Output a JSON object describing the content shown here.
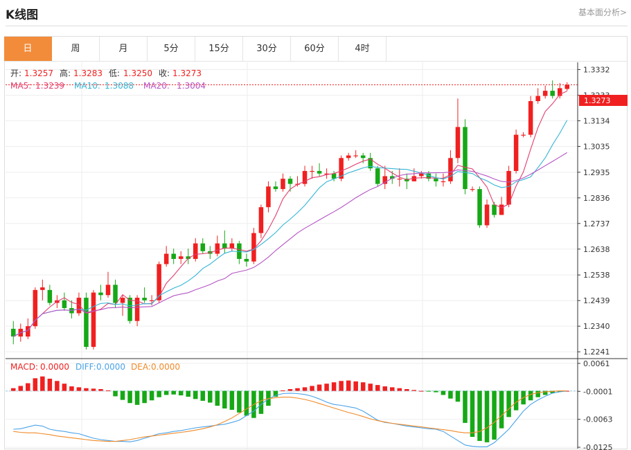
{
  "page": {
    "title": "K线图",
    "top_link": "基本面分析>"
  },
  "tabs": [
    {
      "label": "日",
      "active": true
    },
    {
      "label": "周",
      "active": false
    },
    {
      "label": "月",
      "active": false
    },
    {
      "label": "5分",
      "active": false
    },
    {
      "label": "15分",
      "active": false
    },
    {
      "label": "30分",
      "active": false
    },
    {
      "label": "60分",
      "active": false
    },
    {
      "label": "4时",
      "active": false
    }
  ],
  "info": {
    "open_label": "开:",
    "open": "1.3257",
    "high_label": "高:",
    "high": "1.3283",
    "low_label": "低:",
    "low": "1.3250",
    "close_label": "收:",
    "close": "1.3273",
    "ma5_label": "MA5:",
    "ma5": "1.3239",
    "ma10_label": "MA10:",
    "ma10": "1.3088",
    "ma20_label": "MA20:",
    "ma20": "1.3004"
  },
  "macd_info": {
    "macd_label": "MACD:",
    "macd": "0.0000",
    "diff_label": "DIFF:",
    "diff": "0.0000",
    "dea_label": "DEA:",
    "dea": "0.0000"
  },
  "colors": {
    "up": "#f02020",
    "down": "#16a816",
    "ma5": "#e23c6e",
    "ma10": "#34b5d6",
    "ma20": "#b453c4",
    "diff": "#4aa3e8",
    "dea": "#f08a28",
    "accent": "#f28c3a"
  },
  "chart_data": {
    "type": "candlestick",
    "price_ticks": [
      "1.3332",
      "1.3233",
      "1.3134",
      "1.3035",
      "1.2935",
      "1.2836",
      "1.2737",
      "1.2638",
      "1.2538",
      "1.2439",
      "1.2340",
      "1.2241"
    ],
    "price_range": [
      1.222,
      1.336
    ],
    "last_price": "1.3273",
    "candles": [
      [
        1.233,
        1.23,
        1.236,
        1.227
      ],
      [
        1.23,
        1.233,
        1.235,
        1.228
      ],
      [
        1.23,
        1.234,
        1.237,
        1.229
      ],
      [
        1.234,
        1.248,
        1.249,
        1.233
      ],
      [
        1.248,
        1.249,
        1.252,
        1.244
      ],
      [
        1.248,
        1.243,
        1.25,
        1.242
      ],
      [
        1.243,
        1.244,
        1.246,
        1.241
      ],
      [
        1.244,
        1.241,
        1.247,
        1.24
      ],
      [
        1.241,
        1.239,
        1.244,
        1.237
      ],
      [
        1.239,
        1.245,
        1.247,
        1.238
      ],
      [
        1.245,
        1.226,
        1.247,
        1.225
      ],
      [
        1.226,
        1.247,
        1.248,
        1.225
      ],
      [
        1.247,
        1.246,
        1.25,
        1.244
      ],
      [
        1.246,
        1.25,
        1.255,
        1.245
      ],
      [
        1.25,
        1.243,
        1.252,
        1.241
      ],
      [
        1.243,
        1.245,
        1.246,
        1.238
      ],
      [
        1.245,
        1.236,
        1.246,
        1.235
      ],
      [
        1.236,
        1.245,
        1.246,
        1.234
      ],
      [
        1.245,
        1.244,
        1.249,
        1.243
      ],
      [
        1.244,
        1.244,
        1.246,
        1.242
      ],
      [
        1.244,
        1.258,
        1.259,
        1.243
      ],
      [
        1.258,
        1.262,
        1.265,
        1.257
      ],
      [
        1.262,
        1.26,
        1.264,
        1.258
      ],
      [
        1.26,
        1.261,
        1.263,
        1.258
      ],
      [
        1.261,
        1.26,
        1.264,
        1.258
      ],
      [
        1.26,
        1.266,
        1.268,
        1.259
      ],
      [
        1.266,
        1.263,
        1.268,
        1.262
      ],
      [
        1.263,
        1.262,
        1.265,
        1.26
      ],
      [
        1.262,
        1.266,
        1.269,
        1.261
      ],
      [
        1.266,
        1.264,
        1.271,
        1.262
      ],
      [
        1.264,
        1.266,
        1.268,
        1.263
      ],
      [
        1.266,
        1.26,
        1.267,
        1.258
      ],
      [
        1.26,
        1.259,
        1.262,
        1.257
      ],
      [
        1.259,
        1.27,
        1.272,
        1.258
      ],
      [
        1.27,
        1.28,
        1.281,
        1.268
      ],
      [
        1.28,
        1.288,
        1.29,
        1.278
      ],
      [
        1.288,
        1.287,
        1.29,
        1.286
      ],
      [
        1.287,
        1.291,
        1.293,
        1.286
      ],
      [
        1.291,
        1.289,
        1.292,
        1.286
      ],
      [
        1.289,
        1.289,
        1.292,
        1.288
      ],
      [
        1.289,
        1.294,
        1.296,
        1.288
      ],
      [
        1.294,
        1.294,
        1.296,
        1.291
      ],
      [
        1.294,
        1.293,
        1.297,
        1.292
      ],
      [
        1.293,
        1.293,
        1.295,
        1.291
      ],
      [
        1.293,
        1.291,
        1.294,
        1.29
      ],
      [
        1.291,
        1.299,
        1.3,
        1.29
      ],
      [
        1.299,
        1.3,
        1.301,
        1.298
      ],
      [
        1.3,
        1.3,
        1.302,
        1.299
      ],
      [
        1.3,
        1.299,
        1.301,
        1.297
      ],
      [
        1.299,
        1.295,
        1.301,
        1.294
      ],
      [
        1.295,
        1.289,
        1.296,
        1.288
      ],
      [
        1.289,
        1.292,
        1.296,
        1.287
      ],
      [
        1.292,
        1.291,
        1.294,
        1.289
      ],
      [
        1.291,
        1.291,
        1.295,
        1.288
      ],
      [
        1.291,
        1.29,
        1.293,
        1.287
      ],
      [
        1.29,
        1.292,
        1.295,
        1.29
      ],
      [
        1.292,
        1.293,
        1.294,
        1.291
      ],
      [
        1.293,
        1.291,
        1.294,
        1.29
      ],
      [
        1.291,
        1.29,
        1.293,
        1.288
      ],
      [
        1.29,
        1.29,
        1.293,
        1.288
      ],
      [
        1.29,
        1.299,
        1.302,
        1.289
      ],
      [
        1.299,
        1.311,
        1.322,
        1.297
      ],
      [
        1.311,
        1.287,
        1.314,
        1.285
      ],
      [
        1.287,
        1.287,
        1.288,
        1.286
      ],
      [
        1.287,
        1.273,
        1.288,
        1.272
      ],
      [
        1.273,
        1.281,
        1.283,
        1.272
      ],
      [
        1.281,
        1.277,
        1.282,
        1.276
      ],
      [
        1.277,
        1.281,
        1.284,
        1.278
      ],
      [
        1.281,
        1.294,
        1.296,
        1.28
      ],
      [
        1.294,
        1.308,
        1.31,
        1.293
      ],
      [
        1.308,
        1.308,
        1.309,
        1.307
      ],
      [
        1.308,
        1.321,
        1.323,
        1.307
      ],
      [
        1.321,
        1.323,
        1.326,
        1.32
      ],
      [
        1.323,
        1.325,
        1.327,
        1.322
      ],
      [
        1.325,
        1.323,
        1.329,
        1.322
      ],
      [
        1.323,
        1.326,
        1.328,
        1.322
      ],
      [
        1.3257,
        1.3273,
        1.3283,
        1.325
      ]
    ],
    "macd_ticks": [
      "0.0061",
      "-0.0001",
      "-0.0063",
      "-0.0125"
    ],
    "macd_range": [
      -0.0128,
      0.007
    ],
    "macd_hist": [
      0.0006,
      0.0011,
      0.0017,
      0.0028,
      0.0032,
      0.0027,
      0.0022,
      0.0016,
      0.001,
      0.0008,
      0.0006,
      0.0005,
      0.0004,
      0.0001,
      -0.0012,
      -0.002,
      -0.0027,
      -0.0031,
      -0.0027,
      -0.0021,
      -0.0014,
      -0.0009,
      -0.0008,
      -0.001,
      -0.0013,
      -0.0018,
      -0.0022,
      -0.0026,
      -0.0033,
      -0.0039,
      -0.0042,
      -0.0048,
      -0.0055,
      -0.006,
      -0.0051,
      -0.0033,
      -0.0013,
      0.0001,
      0.0004,
      0.0006,
      0.0008,
      0.0011,
      0.0014,
      0.0016,
      0.0019,
      0.0022,
      0.0023,
      0.0021,
      0.0019,
      0.0016,
      0.0013,
      0.001,
      0.0008,
      0.0006,
      0.0004,
      0.0002,
      0.0,
      -0.0001,
      -0.0003,
      -0.0009,
      -0.0017,
      -0.0024,
      -0.0071,
      -0.0102,
      -0.0111,
      -0.0114,
      -0.0108,
      -0.0083,
      -0.0058,
      -0.0043,
      -0.003,
      -0.0021,
      -0.0014,
      -0.0009,
      -0.0005,
      -0.0002,
      0.0
    ],
    "diff": [
      -0.0085,
      -0.0084,
      -0.008,
      -0.0076,
      -0.0078,
      -0.0085,
      -0.0088,
      -0.009,
      -0.0093,
      -0.0095,
      -0.01,
      -0.0105,
      -0.0108,
      -0.011,
      -0.0112,
      -0.0112,
      -0.0113,
      -0.011,
      -0.0105,
      -0.01,
      -0.0095,
      -0.0093,
      -0.009,
      -0.0088,
      -0.0085,
      -0.0082,
      -0.008,
      -0.0078,
      -0.0076,
      -0.0074,
      -0.007,
      -0.0065,
      -0.0055,
      -0.0045,
      -0.003,
      -0.0018,
      -0.001,
      -0.0006,
      -0.0005,
      -0.0006,
      -0.0008,
      -0.0012,
      -0.0018,
      -0.0025,
      -0.003,
      -0.0032,
      -0.0035,
      -0.0038,
      -0.0045,
      -0.0055,
      -0.0065,
      -0.007,
      -0.0072,
      -0.0075,
      -0.0078,
      -0.008,
      -0.0082,
      -0.0084,
      -0.0085,
      -0.009,
      -0.01,
      -0.011,
      -0.012,
      -0.0123,
      -0.0124,
      -0.0124,
      -0.0115,
      -0.01,
      -0.0085,
      -0.0065,
      -0.0045,
      -0.003,
      -0.002,
      -0.0012,
      -0.0005,
      -0.0002,
      0.0
    ],
    "dea": [
      -0.009,
      -0.0092,
      -0.0093,
      -0.0093,
      -0.0095,
      -0.0097,
      -0.01,
      -0.0102,
      -0.0104,
      -0.0106,
      -0.0108,
      -0.011,
      -0.0111,
      -0.0112,
      -0.0112,
      -0.011,
      -0.0108,
      -0.0105,
      -0.0102,
      -0.01,
      -0.0098,
      -0.0096,
      -0.0094,
      -0.0092,
      -0.009,
      -0.0087,
      -0.0084,
      -0.008,
      -0.0075,
      -0.0068,
      -0.006,
      -0.005,
      -0.004,
      -0.003,
      -0.0022,
      -0.0017,
      -0.0015,
      -0.0014,
      -0.0014,
      -0.0016,
      -0.0019,
      -0.0023,
      -0.0028,
      -0.0033,
      -0.0038,
      -0.0043,
      -0.0048,
      -0.0052,
      -0.0057,
      -0.0062,
      -0.0066,
      -0.0069,
      -0.0072,
      -0.0074,
      -0.0076,
      -0.0078,
      -0.008,
      -0.0082,
      -0.0084,
      -0.0086,
      -0.0088,
      -0.0091,
      -0.0093,
      -0.0093,
      -0.009,
      -0.0082,
      -0.007,
      -0.0055,
      -0.004,
      -0.0025,
      -0.0015,
      -0.0008,
      -0.0004,
      -0.0002,
      -0.0001,
      0.0,
      0.0
    ]
  }
}
